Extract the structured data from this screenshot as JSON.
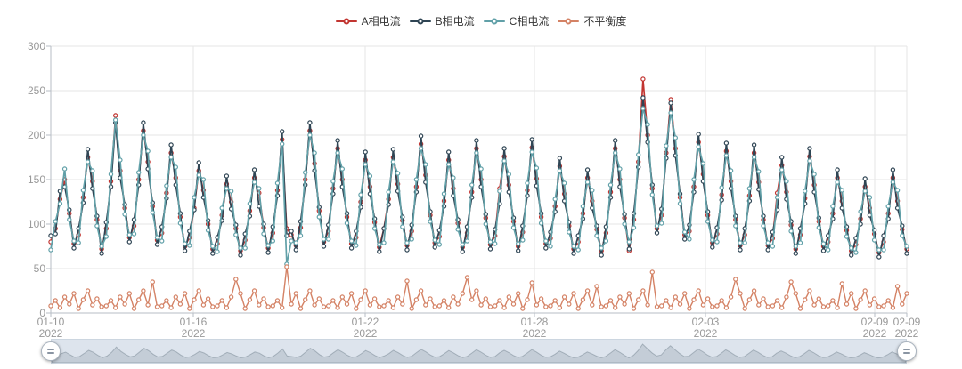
{
  "chart_data": {
    "type": "line",
    "title": "",
    "x_start": "2022-01-10",
    "x_end": "2022-02-09",
    "points_per_day": 6,
    "ylim": [
      0,
      300
    ],
    "yticks": [
      0,
      50,
      100,
      150,
      200,
      250,
      300
    ],
    "ytick_labels": [
      "300",
      "250",
      "200",
      "150",
      "100",
      "50",
      "0"
    ],
    "xticks": [
      {
        "date": "01-10",
        "year": "2022"
      },
      {
        "date": "01-16",
        "year": "2022"
      },
      {
        "date": "01-22",
        "year": "2022"
      },
      {
        "date": "01-28",
        "year": "2022"
      },
      {
        "date": "02-03",
        "year": "2022"
      },
      {
        "date": "02-09",
        "year": "2022"
      },
      {
        "date": "02-09",
        "year": "2022"
      }
    ],
    "grid": true,
    "legend_position": "top",
    "series": [
      {
        "name": "A相电流",
        "color": "#c23531",
        "values": [
          80,
          95,
          128,
          150,
          112,
          78,
          88,
          130,
          175,
          148,
          105,
          72,
          95,
          148,
          222,
          160,
          118,
          85,
          98,
          150,
          205,
          170,
          120,
          82,
          90,
          135,
          180,
          152,
          108,
          75,
          85,
          118,
          160,
          138,
          100,
          72,
          78,
          110,
          145,
          125,
          95,
          70,
          82,
          115,
          152,
          135,
          96,
          73,
          90,
          138,
          195,
          95,
          88,
          76,
          96,
          150,
          205,
          168,
          115,
          80,
          92,
          140,
          185,
          150,
          108,
          78,
          85,
          125,
          172,
          142,
          102,
          74,
          95,
          128,
          175,
          145,
          104,
          76,
          92,
          142,
          190,
          155,
          110,
          79,
          86,
          126,
          172,
          140,
          101,
          74,
          90,
          136,
          185,
          150,
          107,
          77,
          87,
          140,
          176,
          144,
          103,
          75,
          91,
          138,
          186,
          151,
          108,
          78,
          84,
          120,
          165,
          134,
          98,
          72,
          80,
          112,
          152,
          126,
          94,
          70,
          90,
          136,
          185,
          150,
          107,
          70,
          105,
          170,
          263,
          200,
          140,
          95,
          110,
          180,
          240,
          185,
          130,
          88,
          92,
          142,
          192,
          156,
          110,
          79,
          89,
          133,
          182,
          148,
          105,
          76,
          88,
          132,
          180,
          147,
          105,
          76,
          84,
          135,
          166,
          136,
          99,
          72,
          88,
          129,
          176,
          144,
          103,
          75,
          80,
          112,
          152,
          126,
          93,
          70,
          77,
          106,
          142,
          118,
          89,
          68,
          80,
          112,
          152,
          126,
          94,
          72
        ]
      },
      {
        "name": "B相电流",
        "color": "#2f4554",
        "values": [
          87,
          89,
          137,
          142,
          116,
          73,
          95,
          124,
          184,
          140,
          109,
          67,
          102,
          142,
          214,
          152,
          122,
          80,
          105,
          144,
          214,
          162,
          124,
          77,
          97,
          129,
          189,
          144,
          112,
          70,
          92,
          116,
          169,
          130,
          104,
          67,
          85,
          104,
          154,
          117,
          99,
          65,
          89,
          109,
          161,
          120,
          100,
          68,
          97,
          132,
          204,
          87,
          92,
          71,
          103,
          144,
          214,
          160,
          119,
          75,
          99,
          134,
          194,
          142,
          112,
          73,
          92,
          119,
          181,
          134,
          106,
          69,
          95,
          122,
          184,
          137,
          108,
          71,
          99,
          136,
          199,
          147,
          114,
          74,
          93,
          120,
          181,
          132,
          105,
          69,
          97,
          130,
          194,
          142,
          111,
          72,
          94,
          123,
          185,
          136,
          107,
          70,
          98,
          132,
          195,
          143,
          112,
          73,
          91,
          114,
          174,
          126,
          102,
          67,
          87,
          106,
          161,
          118,
          98,
          65,
          97,
          130,
          194,
          142,
          111,
          72,
          112,
          164,
          242,
          192,
          144,
          90,
          117,
          174,
          236,
          177,
          134,
          83,
          99,
          136,
          201,
          148,
          114,
          74,
          96,
          127,
          191,
          140,
          109,
          71,
          95,
          126,
          189,
          139,
          109,
          71,
          91,
          116,
          175,
          128,
          103,
          67,
          95,
          123,
          185,
          136,
          107,
          70,
          87,
          106,
          161,
          118,
          97,
          65,
          84,
          100,
          151,
          110,
          93,
          63,
          87,
          106,
          161,
          118,
          98,
          67
        ]
      },
      {
        "name": "C相电流",
        "color": "#61a0a8",
        "values": [
          71,
          103,
          123,
          162,
          105,
          81,
          79,
          138,
          170,
          160,
          98,
          75,
          86,
          156,
          217,
          172,
          111,
          88,
          89,
          158,
          200,
          182,
          113,
          85,
          81,
          143,
          175,
          164,
          101,
          78,
          76,
          130,
          155,
          150,
          93,
          75,
          69,
          118,
          140,
          137,
          88,
          73,
          73,
          123,
          147,
          140,
          89,
          76,
          81,
          146,
          190,
          55,
          81,
          79,
          87,
          158,
          200,
          180,
          108,
          83,
          83,
          148,
          180,
          162,
          101,
          81,
          76,
          133,
          167,
          154,
          95,
          77,
          79,
          136,
          170,
          157,
          97,
          79,
          83,
          150,
          185,
          167,
          103,
          82,
          77,
          134,
          167,
          152,
          94,
          77,
          81,
          144,
          180,
          162,
          100,
          80,
          78,
          137,
          171,
          156,
          96,
          78,
          82,
          146,
          181,
          163,
          101,
          81,
          75,
          128,
          160,
          146,
          91,
          75,
          71,
          120,
          147,
          138,
          87,
          73,
          81,
          144,
          180,
          162,
          100,
          80,
          96,
          178,
          230,
          212,
          133,
          98,
          101,
          188,
          225,
          197,
          123,
          91,
          83,
          150,
          187,
          168,
          103,
          82,
          80,
          141,
          177,
          160,
          98,
          79,
          79,
          140,
          175,
          159,
          98,
          79,
          75,
          130,
          161,
          148,
          92,
          75,
          79,
          137,
          171,
          156,
          96,
          78,
          71,
          120,
          147,
          138,
          86,
          73,
          68,
          114,
          137,
          130,
          82,
          71,
          71,
          120,
          147,
          138,
          87,
          75
        ]
      },
      {
        "name": "不平衡度",
        "color": "#d48265",
        "values": [
          8,
          14,
          6,
          18,
          10,
          22,
          5,
          15,
          25,
          9,
          16,
          7,
          8,
          14,
          6,
          18,
          10,
          22,
          5,
          15,
          25,
          9,
          35,
          7,
          8,
          14,
          6,
          18,
          10,
          22,
          5,
          15,
          25,
          9,
          16,
          7,
          8,
          14,
          6,
          18,
          38,
          22,
          5,
          15,
          25,
          9,
          16,
          7,
          8,
          14,
          6,
          52,
          10,
          22,
          5,
          15,
          25,
          9,
          16,
          7,
          8,
          14,
          6,
          18,
          10,
          22,
          5,
          15,
          25,
          9,
          16,
          7,
          8,
          14,
          6,
          18,
          10,
          36,
          5,
          15,
          25,
          9,
          16,
          7,
          8,
          14,
          6,
          18,
          10,
          22,
          40,
          15,
          25,
          9,
          16,
          7,
          8,
          14,
          6,
          18,
          10,
          22,
          5,
          15,
          34,
          9,
          16,
          7,
          8,
          14,
          6,
          18,
          10,
          22,
          5,
          15,
          25,
          9,
          30,
          7,
          8,
          14,
          6,
          18,
          10,
          22,
          5,
          15,
          25,
          9,
          46,
          7,
          8,
          14,
          6,
          18,
          10,
          22,
          5,
          15,
          25,
          9,
          16,
          7,
          8,
          14,
          6,
          18,
          38,
          22,
          5,
          15,
          25,
          9,
          16,
          7,
          8,
          14,
          6,
          18,
          35,
          22,
          5,
          15,
          25,
          9,
          16,
          7,
          8,
          14,
          6,
          33,
          10,
          22,
          5,
          15,
          25,
          9,
          16,
          7,
          8,
          14,
          6,
          30,
          10,
          22
        ]
      }
    ]
  },
  "ui": {
    "axis_label_color": "#999999",
    "legend_text_color": "#333333",
    "gridline_color": "#e6e6e6",
    "axisline_color": "#b7bdc6",
    "datazoom": {
      "track_fill": "#dde4ed",
      "silhouette_fill": "rgba(47,69,84,0.14)",
      "silhouette_stroke": "rgba(47,69,84,0.28)"
    }
  }
}
